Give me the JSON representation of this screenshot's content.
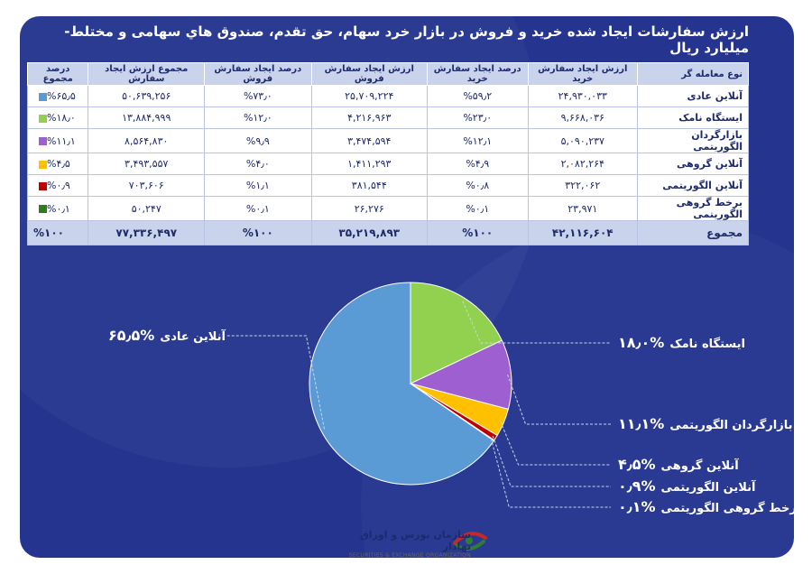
{
  "title": "ارزش سفارشات ایجاد شده خرید و فروش در بازار خرد سهام، حق تقدم، صندوق هاي سهامی و مختلط- میلیارد ریال",
  "chart_data": {
    "type": "pie",
    "title": "ارزش سفارشات ایجاد شده خرید و فروش در بازار خرد سهام، حق تقدم، صندوق هاي سهامی و مختلط- میلیارد ریال",
    "columns": [
      "نوع معامله گر",
      "ارزش ایجاد سفارش خرید",
      "درصد ایجاد سفارش خرید",
      "ارزش ایجاد سفارش فروش",
      "درصد ایجاد سفارش فروش",
      "مجموع ارزش ایجاد سفارش",
      "درصد مجموع"
    ],
    "rows": [
      {
        "name": "آنلاین عادی",
        "buy_value": "۲۴,۹۳۰,۰۳۳",
        "buy_pct": "%۵۹٫۲",
        "sell_value": "۲۵,۷۰۹,۲۲۴",
        "sell_pct": "%۷۳٫۰",
        "total_value": "۵۰,۶۳۹,۲۵۶",
        "total_pct": "%۶۵٫۵",
        "color": "#5b9bd5"
      },
      {
        "name": "ایستگاه نامک",
        "buy_value": "۹,۶۶۸,۰۳۶",
        "buy_pct": "%۲۳٫۰",
        "sell_value": "۴,۲۱۶,۹۶۳",
        "sell_pct": "%۱۲٫۰",
        "total_value": "۱۳,۸۸۴,۹۹۹",
        "total_pct": "%۱۸٫۰",
        "color": "#92d050"
      },
      {
        "name": "بازارگردان الگوریتمی",
        "buy_value": "۵,۰۹۰,۲۳۷",
        "buy_pct": "%۱۲٫۱",
        "sell_value": "۳,۴۷۴,۵۹۴",
        "sell_pct": "%۹٫۹",
        "total_value": "۸,۵۶۴,۸۳۰",
        "total_pct": "%۱۱٫۱",
        "color": "#9e5fd0"
      },
      {
        "name": "آنلاین گروهی",
        "buy_value": "۲,۰۸۲,۲۶۴",
        "buy_pct": "%۴٫۹",
        "sell_value": "۱,۴۱۱,۲۹۳",
        "sell_pct": "%۴٫۰",
        "total_value": "۳,۴۹۳,۵۵۷",
        "total_pct": "%۴٫۵",
        "color": "#ffc000"
      },
      {
        "name": "آنلاین الگوریتمی",
        "buy_value": "۳۲۲,۰۶۲",
        "buy_pct": "%۰٫۸",
        "sell_value": "۳۸۱,۵۴۴",
        "sell_pct": "%۱٫۱",
        "total_value": "۷۰۳,۶۰۶",
        "total_pct": "%۰٫۹",
        "color": "#c00000"
      },
      {
        "name": "برخط گروهی الگوریتمی",
        "buy_value": "۲۳,۹۷۱",
        "buy_pct": "%۰٫۱",
        "sell_value": "۲۶,۲۷۶",
        "sell_pct": "%۰٫۱",
        "total_value": "۵۰,۲۴۷",
        "total_pct": "%۰٫۱",
        "color": "#2e7d1a"
      }
    ],
    "total": {
      "name": "مجموع",
      "buy_value": "۴۲,۱۱۶,۶۰۴",
      "buy_pct": "%۱۰۰",
      "sell_value": "۳۵,۲۱۹,۸۹۳",
      "sell_pct": "%۱۰۰",
      "total_value": "۷۷,۳۳۶,۴۹۷",
      "total_pct": "%۱۰۰"
    },
    "slices": [
      {
        "label": "آنلاین عادی",
        "value": 65.5,
        "pct_text": "%۶۵٫۵",
        "color": "#5b9bd5"
      },
      {
        "label": "ایستگاه نامک",
        "value": 18.0,
        "pct_text": "%۱۸٫۰",
        "color": "#92d050"
      },
      {
        "label": "بازارگردان الگوریتمی",
        "value": 11.1,
        "pct_text": "%۱۱٫۱",
        "color": "#9e5fd0"
      },
      {
        "label": "آنلاین گروهی",
        "value": 4.5,
        "pct_text": "%۴٫۵",
        "color": "#ffc000"
      },
      {
        "label": "آنلاین الگوریتمی",
        "value": 0.9,
        "pct_text": "%۰٫۹",
        "color": "#c00000"
      },
      {
        "label": "برخط گروهی الگوریتمی",
        "value": 0.1,
        "pct_text": "%۰٫۱",
        "color": "#2e7d1a"
      }
    ]
  },
  "logo": {
    "name_fa": "سازمان بورس و اوراق بهادار",
    "name_en": "SECURITIES & EXCHANGE ORGANIZATION"
  }
}
